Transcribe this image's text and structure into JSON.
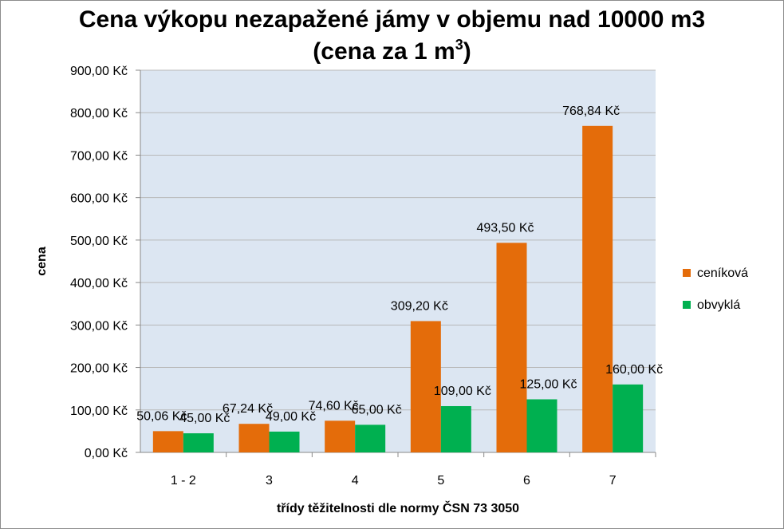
{
  "chart_data": {
    "type": "bar",
    "title_line1": "Cena výkopu nezapažené jámy v objemu nad 10000 m3",
    "title_line2_pre": "(cena za 1 m",
    "title_line2_sup": "3",
    "title_line2_post": ")",
    "xlabel": "třídy těžitelnosti dle normy ČSN 73 3050",
    "ylabel": "cena",
    "categories": [
      "1 - 2",
      "3",
      "4",
      "5",
      "6",
      "7"
    ],
    "series": [
      {
        "name": "ceníková",
        "color": "#E46C0A",
        "values": [
          50.06,
          67.24,
          74.6,
          309.2,
          493.5,
          768.84
        ],
        "labels": [
          "50,06 Kč",
          "67,24 Kč",
          "74,60 Kč",
          "309,20 Kč",
          "493,50 Kč",
          "768,84 Kč"
        ]
      },
      {
        "name": "obvyklá",
        "color": "#00B050",
        "values": [
          45.0,
          49.0,
          65.0,
          109.0,
          125.0,
          160.0
        ],
        "labels": [
          "45,00 Kč",
          "49,00 Kč",
          "65,00 Kč",
          "109,00 Kč",
          "125,00 Kč",
          "160,00 Kč"
        ]
      }
    ],
    "ylim": [
      0,
      900
    ],
    "yticks": [
      0,
      100,
      200,
      300,
      400,
      500,
      600,
      700,
      800,
      900
    ],
    "ytick_labels": [
      "0,00 Kč",
      "100,00 Kč",
      "200,00 Kč",
      "300,00 Kč",
      "400,00 Kč",
      "500,00 Kč",
      "600,00 Kč",
      "700,00 Kč",
      "800,00 Kč",
      "900,00 Kč"
    ],
    "grid": true,
    "legend_position": "right",
    "plot_background": "#DCE6F2"
  }
}
